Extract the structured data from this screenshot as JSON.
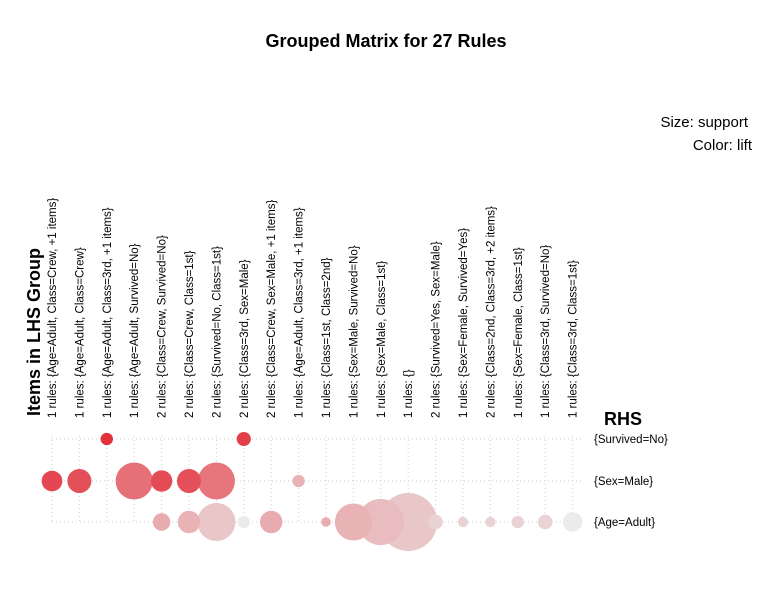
{
  "chart_data": {
    "type": "scatter",
    "title": "Grouped Matrix for 27 Rules",
    "legend": {
      "size": "Size: support",
      "color": "Color: lift",
      "placement": "top-right"
    },
    "xlabel": "Items in LHS Group",
    "ylabel": "RHS",
    "lhs_groups": [
      "1 rules: {Age=Adult, Class=Crew, +1 items}",
      "1 rules: {Age=Adult, Class=Crew}",
      "1 rules: {Age=Adult, Class=3rd, +1 items}",
      "1 rules: {Age=Adult, Survived=No}",
      "2 rules: {Class=Crew, Survived=No}",
      "2 rules: {Class=Crew, Class=1st}",
      "2 rules: {Survived=No, Class=1st}",
      "2 rules: {Class=3rd, Sex=Male}",
      "2 rules: {Class=Crew, Sex=Male, +1 items}",
      "1 rules: {Age=Adult, Class=3rd, +1 items}",
      "1 rules: {Class=1st, Class=2nd}",
      "1 rules: {Sex=Male, Survived=No}",
      "1 rules: {Sex=Male, Class=1st}",
      "1 rules: {}",
      "2 rules: {Survived=Yes, Sex=Male}",
      "1 rules: {Sex=Female, Survived=Yes}",
      "2 rules: {Class=2nd, Class=3rd, +2 items}",
      "1 rules: {Sex=Female, Class=1st}",
      "1 rules: {Class=3rd, Survived=No}",
      "1 rules: {Class=3rd, Class=1st}"
    ],
    "rhs_items": [
      "{Survived=No}",
      "{Sex=Male}",
      "{Age=Adult}"
    ],
    "grid": true,
    "points": [
      {
        "lhs": 2,
        "rhs": 0,
        "support": 0.1,
        "lift": 1.3
      },
      {
        "lhs": 7,
        "rhs": 0,
        "support": 0.13,
        "lift": 1.26
      },
      {
        "lhs": 0,
        "rhs": 1,
        "support": 0.28,
        "lift": 1.24
      },
      {
        "lhs": 1,
        "rhs": 1,
        "support": 0.38,
        "lift": 1.22
      },
      {
        "lhs": 3,
        "rhs": 1,
        "support": 0.9,
        "lift": 1.15
      },
      {
        "lhs": 4,
        "rhs": 1,
        "support": 0.3,
        "lift": 1.23
      },
      {
        "lhs": 5,
        "rhs": 1,
        "support": 0.38,
        "lift": 1.22
      },
      {
        "lhs": 6,
        "rhs": 1,
        "support": 0.9,
        "lift": 1.14
      },
      {
        "lhs": 9,
        "rhs": 1,
        "support": 0.1,
        "lift": 1.04
      },
      {
        "lhs": 4,
        "rhs": 2,
        "support": 0.2,
        "lift": 1.05
      },
      {
        "lhs": 5,
        "rhs": 2,
        "support": 0.33,
        "lift": 1.04
      },
      {
        "lhs": 6,
        "rhs": 2,
        "support": 0.95,
        "lift": 1.02
      },
      {
        "lhs": 7,
        "rhs": 2,
        "support": 0.1,
        "lift": 1.0
      },
      {
        "lhs": 8,
        "rhs": 2,
        "support": 0.33,
        "lift": 1.05
      },
      {
        "lhs": 10,
        "rhs": 2,
        "support": 0.06,
        "lift": 1.05
      },
      {
        "lhs": 11,
        "rhs": 2,
        "support": 0.9,
        "lift": 1.04
      },
      {
        "lhs": 12,
        "rhs": 2,
        "support": 1.4,
        "lift": 1.03
      },
      {
        "lhs": 13,
        "rhs": 2,
        "support": 2.2,
        "lift": 1.02
      },
      {
        "lhs": 14,
        "rhs": 2,
        "support": 0.14,
        "lift": 1.01
      },
      {
        "lhs": 15,
        "rhs": 2,
        "support": 0.07,
        "lift": 1.01
      },
      {
        "lhs": 16,
        "rhs": 2,
        "support": 0.07,
        "lift": 1.01
      },
      {
        "lhs": 17,
        "rhs": 2,
        "support": 0.1,
        "lift": 1.01
      },
      {
        "lhs": 18,
        "rhs": 2,
        "support": 0.14,
        "lift": 1.01
      },
      {
        "lhs": 19,
        "rhs": 2,
        "support": 0.25,
        "lift": 1.0
      }
    ],
    "colors": {
      "high": "#e3303b",
      "low": "#ebebeb",
      "grid": "#cfcfcf"
    }
  }
}
